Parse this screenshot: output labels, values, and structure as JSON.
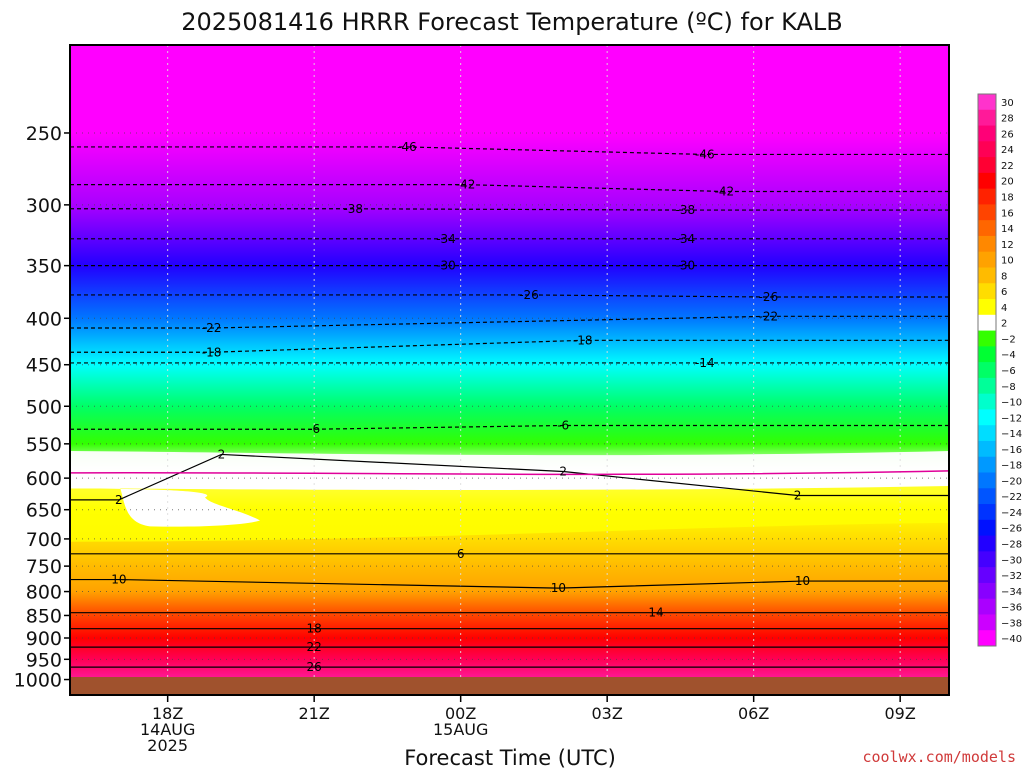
{
  "chart_data": {
    "type": "heatmap",
    "title": "2025081416 HRRR Forecast Temperature (ºC) for KALB",
    "xlabel": "Forecast Time (UTC)",
    "x_ticks": [
      {
        "hour": 18,
        "label": "18Z",
        "label2": "14AUG",
        "label3": "2025"
      },
      {
        "hour": 21,
        "label": "21Z",
        "label2": "",
        "label3": ""
      },
      {
        "hour": 24,
        "label": "00Z",
        "label2": "15AUG",
        "label3": ""
      },
      {
        "hour": 27,
        "label": "03Z",
        "label2": "",
        "label3": ""
      },
      {
        "hour": 30,
        "label": "06Z",
        "label2": "",
        "label3": ""
      },
      {
        "hour": 33,
        "label": "09Z",
        "label2": "",
        "label3": ""
      }
    ],
    "xlim_hours": [
      16,
      34
    ],
    "y_axis": "pressure (hPa), log scale, inverted",
    "y_ticks": [
      "250",
      "300",
      "350",
      "400",
      "450",
      "500",
      "550",
      "600",
      "650",
      "700",
      "750",
      "800",
      "850",
      "900",
      "950",
      "1000"
    ],
    "ylim": [
      1040,
      200
    ],
    "ground_level_hPa": 1000,
    "grid": "dotted",
    "colorbar": {
      "levels": [
        30,
        28,
        26,
        24,
        22,
        20,
        18,
        16,
        14,
        12,
        10,
        8,
        6,
        4,
        2,
        -2,
        -4,
        -6,
        -8,
        -10,
        -12,
        -14,
        -16,
        -18,
        -20,
        -22,
        -24,
        -26,
        -28,
        -30,
        -32,
        -34,
        -36,
        -38,
        -40
      ],
      "labels": [
        "30",
        "28",
        "26",
        "24",
        "22",
        "20",
        "18",
        "16",
        "14",
        "12",
        "10",
        "8",
        "6",
        "4",
        "2",
        "−2",
        "−4",
        "−6",
        "−8",
        "−10",
        "−12",
        "−14",
        "−16",
        "−18",
        "−20",
        "−22",
        "−24",
        "−26",
        "−28",
        "−30",
        "−32",
        "−34",
        "−36",
        "−38",
        "−40"
      ],
      "colors": [
        "#ff33cc",
        "#ff1a99",
        "#ff0077",
        "#ff0055",
        "#ff0033",
        "#ff0000",
        "#ff2200",
        "#ff4400",
        "#ff6600",
        "#ff8800",
        "#ffa200",
        "#ffbb00",
        "#ffdd00",
        "#ffff00",
        "#ffffff",
        "#33ff00",
        "#00ff33",
        "#00ff66",
        "#00ff99",
        "#00ffcc",
        "#00ffff",
        "#00ddff",
        "#00bbff",
        "#0099ff",
        "#0077ff",
        "#0055ff",
        "#0033ff",
        "#0011ff",
        "#2200ff",
        "#4400ff",
        "#6600ff",
        "#8800ff",
        "#aa00ff",
        "#cc00ff",
        "#ff00ff"
      ]
    },
    "profile_row_temperatures_C": [
      {
        "p": 1000,
        "t": 29
      },
      {
        "p": 950,
        "t": 25
      },
      {
        "p": 900,
        "t": 21
      },
      {
        "p": 850,
        "t": 16
      },
      {
        "p": 800,
        "t": 11
      },
      {
        "p": 750,
        "t": 9
      },
      {
        "p": 700,
        "t": 7
      },
      {
        "p": 650,
        "t": 4
      },
      {
        "p": 620,
        "t": 2
      },
      {
        "p": 590,
        "t": 0
      },
      {
        "p": 550,
        "t": -4
      },
      {
        "p": 500,
        "t": -8
      },
      {
        "p": 450,
        "t": -14
      },
      {
        "p": 400,
        "t": -22
      },
      {
        "p": 350,
        "t": -29
      },
      {
        "p": 300,
        "t": -38
      },
      {
        "p": 250,
        "t": -46
      },
      {
        "p": 200,
        "t": -50
      }
    ],
    "contour_labels": [
      {
        "text": "-46",
        "hour": 22.9,
        "p": 259
      },
      {
        "text": "-46",
        "hour": 29.0,
        "p": 264
      },
      {
        "text": "-42",
        "hour": 24.1,
        "p": 285
      },
      {
        "text": "-42",
        "hour": 29.4,
        "p": 290
      },
      {
        "text": "-38",
        "hour": 21.8,
        "p": 303
      },
      {
        "text": "-38",
        "hour": 28.6,
        "p": 304
      },
      {
        "text": "-34",
        "hour": 23.7,
        "p": 327
      },
      {
        "text": "-34",
        "hour": 28.6,
        "p": 327
      },
      {
        "text": "-30",
        "hour": 23.7,
        "p": 350
      },
      {
        "text": "-30",
        "hour": 28.6,
        "p": 350
      },
      {
        "text": "-26",
        "hour": 25.4,
        "p": 377
      },
      {
        "text": "-26",
        "hour": 30.3,
        "p": 379
      },
      {
        "text": "-22",
        "hour": 18.9,
        "p": 410
      },
      {
        "text": "-22",
        "hour": 30.3,
        "p": 398
      },
      {
        "text": "-18",
        "hour": 18.9,
        "p": 436
      },
      {
        "text": "-18",
        "hour": 26.5,
        "p": 423
      },
      {
        "text": "-14",
        "hour": 29.0,
        "p": 448
      },
      {
        "text": "-6",
        "hour": 21.0,
        "p": 530
      },
      {
        "text": "-6",
        "hour": 26.1,
        "p": 525
      },
      {
        "text": "2",
        "hour": 19.1,
        "p": 565
      },
      {
        "text": "2",
        "hour": 26.1,
        "p": 590
      },
      {
        "text": "2",
        "hour": 17.0,
        "p": 634
      },
      {
        "text": "2",
        "hour": 30.9,
        "p": 627
      },
      {
        "text": "6",
        "hour": 24.0,
        "p": 727
      },
      {
        "text": "10",
        "hour": 17.0,
        "p": 776
      },
      {
        "text": "10",
        "hour": 26.0,
        "p": 793
      },
      {
        "text": "10",
        "hour": 31.0,
        "p": 779
      },
      {
        "text": "14",
        "hour": 28.0,
        "p": 844
      },
      {
        "text": "18",
        "hour": 21.0,
        "p": 879
      },
      {
        "text": "22",
        "hour": 21.0,
        "p": 921
      },
      {
        "text": "26",
        "hour": 21.0,
        "p": 969
      }
    ],
    "credit": "coolwx.com/models"
  }
}
